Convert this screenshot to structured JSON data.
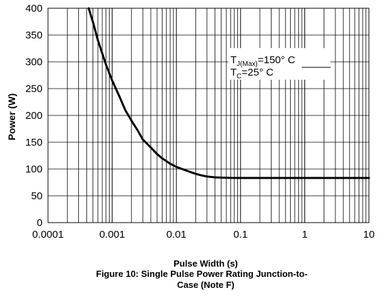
{
  "chart_data": {
    "type": "line",
    "xscale": "log",
    "xlim": [
      0.0001,
      10
    ],
    "ylim": [
      0,
      400
    ],
    "x_tick_labels": [
      "0.0001",
      "0.001",
      "0.01",
      "0.1",
      "1",
      "10"
    ],
    "y_tick_labels": [
      "0",
      "50",
      "100",
      "150",
      "200",
      "250",
      "300",
      "350",
      "400"
    ],
    "xlabel": "Pulse Width (s)",
    "ylabel": "Power (W)",
    "grid": true,
    "series": [
      {
        "color": "#000000",
        "x": [
          0.00043,
          0.0005,
          0.0006,
          0.0008,
          0.001,
          0.0013,
          0.0016,
          0.002,
          0.0025,
          0.003,
          0.004,
          0.005,
          0.006,
          0.008,
          0.01,
          0.013,
          0.016,
          0.02,
          0.025,
          0.03,
          0.04,
          0.05,
          0.07,
          0.1,
          0.2,
          0.5,
          1,
          2,
          5,
          10
        ],
        "y": [
          400,
          375,
          340,
          295,
          265,
          235,
          210,
          190,
          172,
          155,
          140,
          128,
          120,
          110,
          104,
          99,
          95,
          91,
          88,
          86,
          84.5,
          84,
          83.5,
          83.3,
          83.3,
          83.3,
          83.3,
          83.3,
          83.3,
          83.3
        ]
      }
    ],
    "annotation": {
      "line1_main": "T",
      "line1_sub": "J(Max)",
      "line1_rest": "=150° C",
      "line2_main": "T",
      "line2_sub": "C",
      "line2_rest": "=25° C"
    }
  },
  "caption_line1": "Figure 10: Single Pulse Power Rating Junction-to-",
  "caption_line2": "Case (Note F)"
}
